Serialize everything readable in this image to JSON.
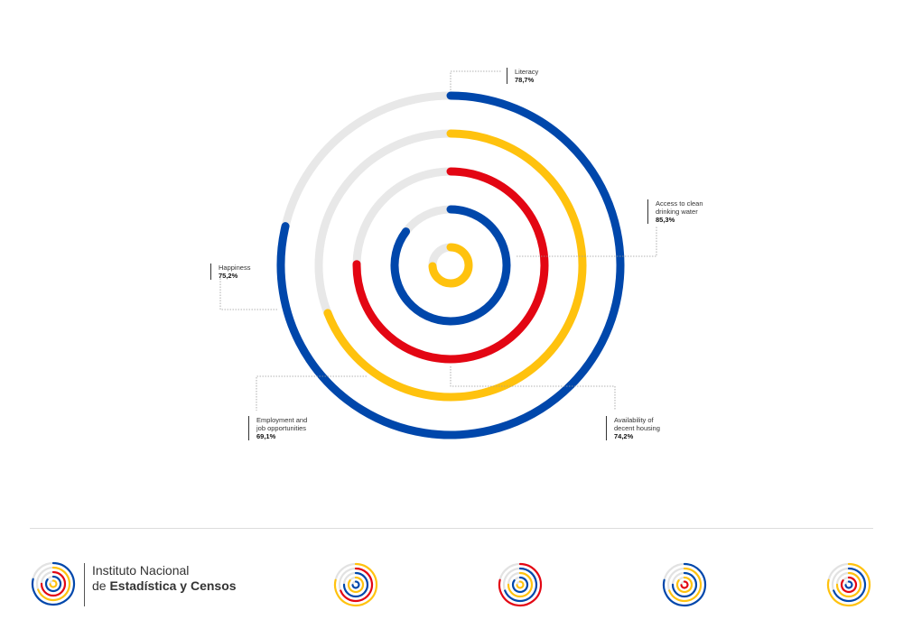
{
  "chart_data": {
    "type": "radial-bar",
    "unit": "%",
    "max": 100,
    "series": [
      {
        "name": "Literacy",
        "value": 78.7,
        "label": "78,7%",
        "color": "#0047AB"
      },
      {
        "name": "Employment and job opportunities",
        "value": 69.1,
        "label": "69,1%",
        "color": "#FFC20E"
      },
      {
        "name": "Happiness",
        "value": 75.2,
        "label": "75,2%",
        "color": "#E30613"
      },
      {
        "name": "Access to clean drinking water",
        "value": 85.3,
        "label": "85,3%",
        "color": "#0047AB"
      },
      {
        "name": "Availability of decent housing",
        "value": 74.2,
        "label": "74,2%",
        "color": "#FFC20E"
      }
    ],
    "track_color": "#E8E8E8"
  },
  "labels": {
    "literacy": {
      "name": "Literacy",
      "value": "78,7%"
    },
    "water": {
      "name": "Access to clean\ndrinking water",
      "value": "85,3%"
    },
    "happiness": {
      "name": "Happiness",
      "value": "75,2%"
    },
    "employment": {
      "name": "Employment and\njob opportunities",
      "value": "69,1%"
    },
    "housing": {
      "name": "Availability of\ndecent housing",
      "value": "74,2%"
    }
  },
  "footer": {
    "org_line1": "Instituto Nacional",
    "org_line2_prefix": "de ",
    "org_line2_bold": "Estadística y Censos"
  }
}
